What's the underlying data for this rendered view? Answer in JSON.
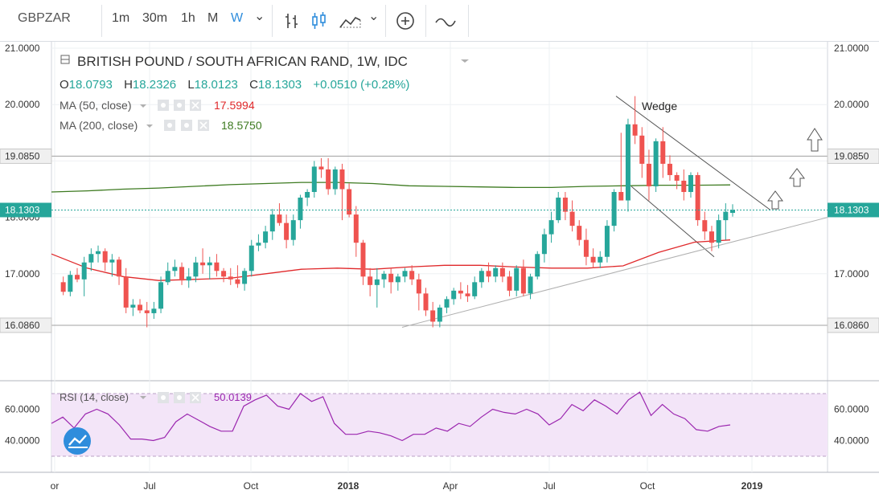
{
  "toolbar": {
    "symbol": "GBPZAR",
    "intervals": [
      "1m",
      "30m",
      "1h",
      "M",
      "W"
    ],
    "active_interval": "W",
    "chevron": "⌄"
  },
  "legend": {
    "title": "BRITISH POUND / SOUTH AFRICAN RAND, 1W, IDC",
    "ohlc": {
      "o_label": "O",
      "o_value": "18.0793",
      "h_label": "H",
      "h_value": "18.2326",
      "l_label": "L",
      "l_value": "18.0123",
      "c_label": "C",
      "c_value": "18.1303",
      "change": "+0.0510 (+0.28%)"
    },
    "ma50": {
      "label": "MA (50, close)",
      "value": "17.5994",
      "color": "#e0292b"
    },
    "ma200": {
      "label": "MA (200, close)",
      "value": "18.5750",
      "color": "#3d7a20"
    }
  },
  "annotation": {
    "wedge_label": "Wedge"
  },
  "rsi": {
    "label": "RSI (14, close)",
    "value": "50.0139",
    "color": "#9b26af",
    "band_color": "#f3e5f8"
  },
  "colors": {
    "up": "#26a69a",
    "down": "#ef5350",
    "last_price_bg": "#26a69a"
  },
  "chart_data": {
    "type": "candlestick",
    "symbol": "GBPZAR",
    "timeframe": "1W",
    "price_axis_ticks": [
      "21.0000",
      "20.0000",
      "19.0850",
      "17.0000",
      "16.0860"
    ],
    "left_axis_partial": "18.0000",
    "rsi_axis_ticks": [
      "60.0000",
      "40.0000"
    ],
    "time_axis_ticks": [
      "or",
      "Jul",
      "Oct",
      "2018",
      "Apr",
      "Jul",
      "Oct",
      "2019"
    ],
    "horizontal_levels": [
      {
        "label": "19.0850",
        "value": 19.085
      },
      {
        "label": "16.0860",
        "value": 16.086
      }
    ],
    "last_price": {
      "label": "18.1303",
      "value": 18.1303
    },
    "first_candle_index": 1,
    "candles": [
      [
        16.85,
        16.95,
        16.62,
        16.68
      ],
      [
        16.68,
        17.05,
        16.6,
        16.98
      ],
      [
        16.98,
        17.1,
        16.85,
        16.9
      ],
      [
        16.9,
        17.3,
        16.6,
        17.2
      ],
      [
        17.2,
        17.45,
        17.05,
        17.35
      ],
      [
        17.35,
        17.5,
        17.2,
        17.4
      ],
      [
        17.4,
        17.45,
        17.05,
        17.2
      ],
      [
        17.2,
        17.35,
        16.95,
        17.25
      ],
      [
        17.25,
        17.3,
        16.8,
        16.95
      ],
      [
        16.95,
        17.1,
        16.3,
        16.4
      ],
      [
        16.4,
        16.55,
        16.25,
        16.45
      ],
      [
        16.45,
        16.55,
        16.3,
        16.35
      ],
      [
        16.35,
        16.5,
        16.05,
        16.3
      ],
      [
        16.3,
        16.5,
        16.2,
        16.38
      ],
      [
        16.38,
        16.95,
        16.3,
        16.85
      ],
      [
        16.85,
        17.2,
        16.8,
        17.05
      ],
      [
        17.05,
        17.25,
        16.95,
        17.12
      ],
      [
        17.12,
        17.2,
        16.8,
        16.88
      ],
      [
        16.88,
        17.1,
        16.75,
        16.95
      ],
      [
        16.95,
        17.3,
        16.85,
        17.2
      ],
      [
        17.2,
        17.45,
        17.0,
        17.15
      ],
      [
        17.15,
        17.3,
        16.9,
        17.2
      ],
      [
        17.2,
        17.35,
        16.95,
        17.05
      ],
      [
        17.05,
        17.1,
        16.85,
        16.95
      ],
      [
        16.95,
        17.1,
        16.8,
        16.9
      ],
      [
        16.9,
        17.15,
        16.75,
        16.82
      ],
      [
        16.82,
        17.1,
        16.7,
        17.05
      ],
      [
        17.05,
        17.6,
        16.95,
        17.5
      ],
      [
        17.5,
        17.7,
        17.4,
        17.55
      ],
      [
        17.55,
        17.85,
        17.45,
        17.75
      ],
      [
        17.75,
        18.15,
        17.6,
        18.05
      ],
      [
        18.05,
        18.25,
        17.85,
        17.9
      ],
      [
        17.9,
        18.05,
        17.45,
        17.6
      ],
      [
        17.6,
        18.05,
        17.5,
        17.95
      ],
      [
        17.95,
        18.4,
        17.8,
        18.35
      ],
      [
        18.35,
        18.5,
        18.2,
        18.45
      ],
      [
        18.45,
        19.0,
        18.35,
        18.9
      ],
      [
        18.9,
        19.05,
        18.7,
        18.85
      ],
      [
        18.85,
        19.05,
        18.4,
        18.5
      ],
      [
        18.5,
        18.9,
        18.4,
        18.85
      ],
      [
        18.85,
        18.95,
        17.95,
        18.5
      ],
      [
        18.5,
        18.6,
        18.0,
        18.05
      ],
      [
        18.05,
        18.2,
        17.3,
        17.55
      ],
      [
        17.55,
        17.6,
        16.8,
        16.95
      ],
      [
        16.95,
        17.1,
        16.6,
        16.8
      ],
      [
        16.8,
        17.1,
        16.4,
        16.9
      ],
      [
        16.9,
        17.05,
        16.75,
        17.0
      ],
      [
        17.0,
        17.1,
        16.65,
        16.85
      ],
      [
        16.85,
        17.0,
        16.7,
        16.95
      ],
      [
        16.95,
        17.1,
        16.85,
        17.05
      ],
      [
        17.05,
        17.15,
        16.8,
        16.9
      ],
      [
        16.9,
        17.0,
        16.35,
        16.65
      ],
      [
        16.65,
        16.75,
        16.25,
        16.35
      ],
      [
        16.35,
        16.5,
        16.05,
        16.15
      ],
      [
        16.15,
        16.45,
        16.05,
        16.4
      ],
      [
        16.4,
        16.6,
        16.3,
        16.55
      ],
      [
        16.55,
        16.75,
        16.45,
        16.7
      ],
      [
        16.7,
        16.85,
        16.55,
        16.65
      ],
      [
        16.65,
        16.8,
        16.5,
        16.6
      ],
      [
        16.6,
        16.95,
        16.55,
        16.85
      ],
      [
        16.85,
        17.1,
        16.75,
        17.05
      ],
      [
        17.05,
        17.2,
        16.85,
        16.95
      ],
      [
        16.95,
        17.15,
        16.85,
        17.1
      ],
      [
        17.1,
        17.2,
        16.85,
        16.95
      ],
      [
        16.95,
        17.05,
        16.6,
        16.7
      ],
      [
        16.7,
        17.15,
        16.6,
        17.1
      ],
      [
        17.1,
        17.25,
        16.6,
        16.65
      ],
      [
        16.65,
        17.0,
        16.55,
        16.95
      ],
      [
        16.95,
        17.4,
        16.9,
        17.35
      ],
      [
        17.35,
        17.8,
        17.2,
        17.7
      ],
      [
        17.7,
        18.1,
        17.55,
        17.95
      ],
      [
        17.95,
        18.45,
        17.9,
        18.35
      ],
      [
        18.35,
        18.45,
        17.95,
        18.1
      ],
      [
        18.1,
        18.3,
        17.75,
        17.85
      ],
      [
        17.85,
        17.95,
        17.5,
        17.6
      ],
      [
        17.6,
        17.8,
        17.15,
        17.3
      ],
      [
        17.3,
        17.45,
        17.1,
        17.2
      ],
      [
        17.2,
        17.4,
        17.1,
        17.3
      ],
      [
        17.3,
        17.95,
        17.2,
        17.85
      ],
      [
        17.85,
        18.5,
        17.75,
        18.45
      ],
      [
        18.45,
        19.5,
        18.35,
        18.3
      ],
      [
        18.3,
        19.75,
        18.1,
        19.65
      ],
      [
        19.65,
        20.15,
        19.3,
        19.45
      ],
      [
        19.45,
        19.6,
        18.7,
        18.95
      ],
      [
        18.95,
        19.2,
        18.3,
        18.55
      ],
      [
        18.55,
        19.4,
        18.45,
        19.35
      ],
      [
        19.35,
        19.6,
        18.7,
        18.95
      ],
      [
        18.95,
        19.1,
        18.65,
        18.75
      ],
      [
        18.75,
        18.8,
        18.5,
        18.65
      ],
      [
        18.65,
        18.85,
        18.3,
        18.45
      ],
      [
        18.45,
        18.8,
        18.35,
        18.75
      ],
      [
        18.75,
        18.8,
        17.85,
        17.95
      ],
      [
        17.95,
        18.1,
        17.6,
        17.75
      ],
      [
        17.75,
        17.85,
        17.4,
        17.55
      ],
      [
        17.55,
        18.05,
        17.45,
        17.95
      ],
      [
        17.95,
        18.25,
        17.6,
        18.1
      ],
      [
        18.0793,
        18.2326,
        18.0123,
        18.1303
      ]
    ],
    "ma50": [
      17.35,
      17.1,
      16.95,
      16.88,
      16.9,
      16.92,
      17.0,
      17.08,
      17.1,
      17.08,
      17.12,
      17.15,
      17.15,
      17.12,
      17.1,
      17.1,
      17.14,
      17.38,
      17.56,
      17.6
    ],
    "ma200": [
      18.45,
      18.47,
      18.5,
      18.52,
      18.55,
      18.58,
      18.6,
      18.62,
      18.62,
      18.6,
      18.56,
      18.55,
      18.54,
      18.53,
      18.53,
      18.55,
      18.56,
      18.57,
      18.57,
      18.575
    ],
    "rsi": [
      51,
      55,
      48,
      57,
      60,
      57,
      50,
      41,
      41,
      40,
      42,
      52,
      57,
      53,
      49,
      46,
      46,
      62,
      66,
      69,
      62,
      60,
      70,
      65,
      68,
      51,
      44,
      44,
      46,
      45,
      43,
      40,
      44,
      44,
      48,
      46,
      51,
      49,
      55,
      60,
      58,
      57,
      60,
      57,
      50,
      54,
      63,
      59,
      66,
      62,
      57,
      66,
      71,
      56,
      63,
      57,
      54,
      47,
      46,
      49,
      50
    ],
    "ylim": [
      15.7,
      21.2
    ],
    "rsi_ylim": [
      30,
      70
    ]
  }
}
